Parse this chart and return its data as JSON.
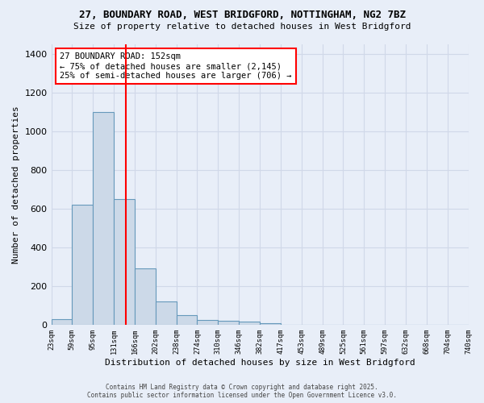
{
  "title_line1": "27, BOUNDARY ROAD, WEST BRIDGFORD, NOTTINGHAM, NG2 7BZ",
  "title_line2": "Size of property relative to detached houses in West Bridgford",
  "xlabel": "Distribution of detached houses by size in West Bridgford",
  "ylabel": "Number of detached properties",
  "bin_labels": [
    "23sqm",
    "59sqm",
    "95sqm",
    "131sqm",
    "166sqm",
    "202sqm",
    "238sqm",
    "274sqm",
    "310sqm",
    "346sqm",
    "382sqm",
    "417sqm",
    "453sqm",
    "489sqm",
    "525sqm",
    "561sqm",
    "597sqm",
    "632sqm",
    "668sqm",
    "704sqm",
    "740sqm"
  ],
  "bar_heights": [
    30,
    620,
    1100,
    650,
    290,
    120,
    50,
    25,
    20,
    15,
    8,
    0,
    0,
    0,
    0,
    0,
    0,
    0,
    0,
    0
  ],
  "bar_color": "#ccd9e8",
  "bar_edge_color": "#6699bb",
  "background_color": "#e8eef8",
  "grid_color": "#d0d8e8",
  "red_line_x": 3.58,
  "annotation_text": "27 BOUNDARY ROAD: 152sqm\n← 75% of detached houses are smaller (2,145)\n25% of semi-detached houses are larger (706) →",
  "ylim": [
    0,
    1450
  ],
  "yticks": [
    0,
    200,
    400,
    600,
    800,
    1000,
    1200,
    1400
  ],
  "footer_line1": "Contains HM Land Registry data © Crown copyright and database right 2025.",
  "footer_line2": "Contains public sector information licensed under the Open Government Licence v3.0."
}
